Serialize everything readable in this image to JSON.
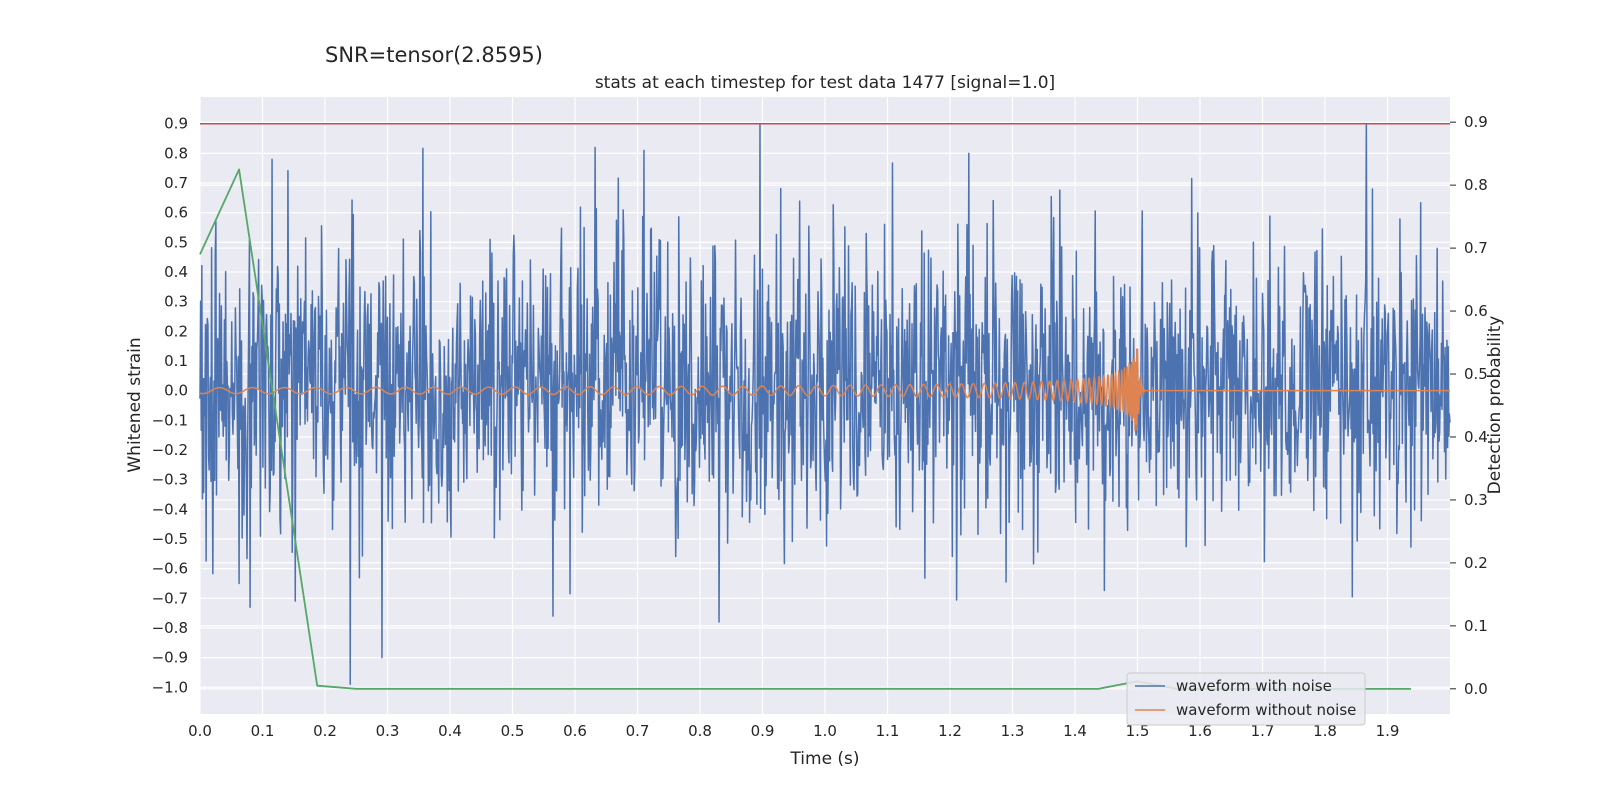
{
  "figure": {
    "suptitle": "SNR=tensor(2.8595)",
    "title": "stats at each timestep for test data 1477 [signal=1.0]",
    "xlabel": "Time (s)",
    "ylabel_left": "Whitened strain",
    "ylabel_right": "Detection probability"
  },
  "legend": {
    "placement": "lower-right",
    "items": [
      {
        "label": "waveform with noise",
        "color": "#4c72b0"
      },
      {
        "label": "waveform without noise",
        "color": "#dd8452"
      }
    ]
  },
  "chart_data": {
    "type": "line",
    "title": "stats at each timestep for test data 1477 [signal=1.0]",
    "xlabel": "Time (s)",
    "ylabel": "Whitened strain",
    "y2label": "Detection probability",
    "xlim": [
      0.0,
      2.0
    ],
    "ylim": [
      -1.09,
      0.99
    ],
    "y2lim": [
      -0.04,
      0.94
    ],
    "xticks": [
      "0.0",
      "0.1",
      "0.2",
      "0.3",
      "0.4",
      "0.5",
      "0.6",
      "0.7",
      "0.8",
      "0.9",
      "1.0",
      "1.1",
      "1.2",
      "1.3",
      "1.4",
      "1.5",
      "1.6",
      "1.7",
      "1.8",
      "1.9"
    ],
    "yticks_left": [
      "0.9",
      "0.8",
      "0.7",
      "0.6",
      "0.5",
      "0.4",
      "0.3",
      "0.2",
      "0.1",
      "0.0",
      "−0.1",
      "−0.2",
      "−0.3",
      "−0.4",
      "−0.5",
      "−0.6",
      "−0.7",
      "−0.8",
      "−0.9",
      "−1.0"
    ],
    "yticks_right": [
      "0.9",
      "0.8",
      "0.7",
      "0.6",
      "0.5",
      "0.4",
      "0.3",
      "0.2",
      "0.1",
      "0.0"
    ],
    "grid": true,
    "background": "#eaeaf2",
    "series": [
      {
        "name": "waveform with noise",
        "axis": "left",
        "color": "#4c72b0",
        "kind": "dense_noise",
        "n_points": 2048,
        "approx_range": [
          -1.0,
          0.9
        ],
        "peaks": [
          {
            "x": 0.896,
            "y": 0.9
          },
          {
            "x": 1.866,
            "y": 0.9
          },
          {
            "x": 0.24,
            "y": -0.99
          },
          {
            "x": 0.83,
            "y": -0.78
          },
          {
            "x": 0.565,
            "y": -0.76
          },
          {
            "x": 0.08,
            "y": -0.73
          },
          {
            "x": 0.71,
            "y": 0.81
          },
          {
            "x": 1.23,
            "y": 0.8
          }
        ]
      },
      {
        "name": "waveform without noise",
        "axis": "left",
        "color": "#dd8452",
        "kind": "chirp",
        "x_start": 0.0,
        "x_merger": 1.5,
        "x_end": 2.0,
        "amp_start": 0.01,
        "amp_peak": 0.14
      },
      {
        "axis": "right",
        "color": "#55a868",
        "x": [
          0.0,
          0.0625,
          0.1875,
          0.25,
          1.4375,
          1.5,
          1.5625,
          1.9375
        ],
        "values": [
          0.69,
          0.825,
          0.005,
          0.0,
          0.0,
          0.012,
          0.0,
          0.0
        ]
      },
      {
        "axis": "left",
        "color": "#c44e52",
        "kind": "hline",
        "y": 0.9
      }
    ]
  }
}
